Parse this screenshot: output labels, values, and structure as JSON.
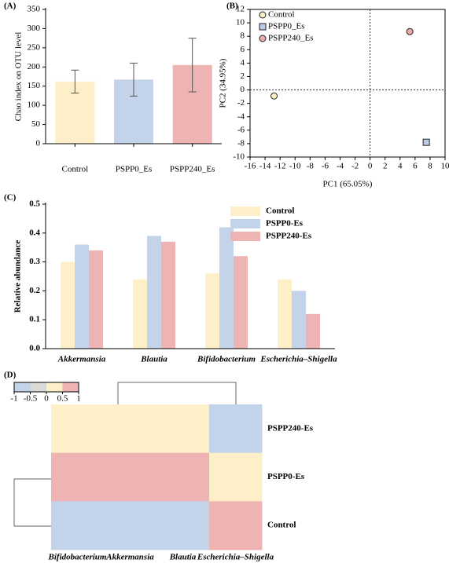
{
  "chart_data": [
    {
      "type": "bar",
      "panel_label": "(A)",
      "ylabel": "Chao index on OTU level",
      "categories": [
        "Control",
        "PSPP0_Es",
        "PSPP240_Es"
      ],
      "values": [
        162,
        167,
        205
      ],
      "errors": [
        30,
        43,
        70
      ],
      "colors": [
        "#fdefc8",
        "#c3d3ea",
        "#eeb4b4"
      ],
      "ylim": [
        0,
        350
      ],
      "yticks": [
        0,
        50,
        100,
        150,
        200,
        250,
        300,
        350
      ]
    },
    {
      "type": "scatter",
      "panel_label": "(B)",
      "xlabel": "PC1 (65.05%)",
      "ylabel": "PC2 (34.95%)",
      "series": [
        {
          "name": "Control",
          "color": "#fbf1c4",
          "marker": "circle",
          "x": [
            -12.8
          ],
          "y": [
            -0.9
          ]
        },
        {
          "name": "PSPP0_Es",
          "color": "#b9cde8",
          "marker": "square",
          "x": [
            7.5
          ],
          "y": [
            -7.8
          ]
        },
        {
          "name": "PSPP240_Es",
          "color": "#eea9a9",
          "marker": "circle",
          "x": [
            5.3
          ],
          "y": [
            8.7
          ]
        }
      ],
      "xlim": [
        -16,
        10
      ],
      "xticks": [
        -16,
        -14,
        -12,
        -10,
        -8,
        -6,
        -4,
        -2,
        0,
        2,
        4,
        6,
        8,
        10
      ],
      "ylim": [
        -10,
        12
      ],
      "yticks": [
        -10,
        -8,
        -6,
        -4,
        -2,
        0,
        2,
        4,
        6,
        8,
        10,
        12
      ],
      "vline": 0,
      "hline": 0
    },
    {
      "type": "bar",
      "panel_label": "(C)",
      "ylabel": "Relative abundance",
      "categories": [
        "Akkermansia",
        "Blautia",
        "Bifidobacterium",
        "Escherichia–Shigella"
      ],
      "series": [
        {
          "name": "Control",
          "color": "#fdefc8",
          "values": [
            0.3,
            0.24,
            0.26,
            0.24
          ]
        },
        {
          "name": "PSPP0-Es",
          "color": "#c3d3ea",
          "values": [
            0.36,
            0.39,
            0.42,
            0.2
          ]
        },
        {
          "name": "PSPP240-Es",
          "color": "#eeb4b4",
          "values": [
            0.34,
            0.37,
            0.32,
            0.12
          ]
        }
      ],
      "ylim": [
        0,
        0.5
      ],
      "yticks": [
        {
          "value": 0,
          "label": "0.0"
        },
        0.1,
        0.2,
        0.3,
        0.4,
        0.5
      ]
    },
    {
      "type": "heatmap",
      "panel_label": "(D)",
      "rows": [
        "PSPP240-Es",
        "PSPP0-Es",
        "Control"
      ],
      "columns": [
        "Bifidobacterium",
        "Akkermansia",
        "Blautia",
        "Escherichia–Shigella"
      ],
      "values": [
        [
          0.4,
          0.4,
          0.4,
          -0.9
        ],
        [
          0.9,
          0.9,
          0.9,
          0.4
        ],
        [
          -0.9,
          -0.9,
          -0.9,
          0.9
        ]
      ],
      "colorbar_ticks": [
        -1,
        -0.5,
        0,
        0.5,
        1
      ],
      "colorbar_colors": [
        "#c3d3ea",
        "#d9d9d6",
        "#fdefc8",
        "#eeb4b4"
      ]
    }
  ]
}
